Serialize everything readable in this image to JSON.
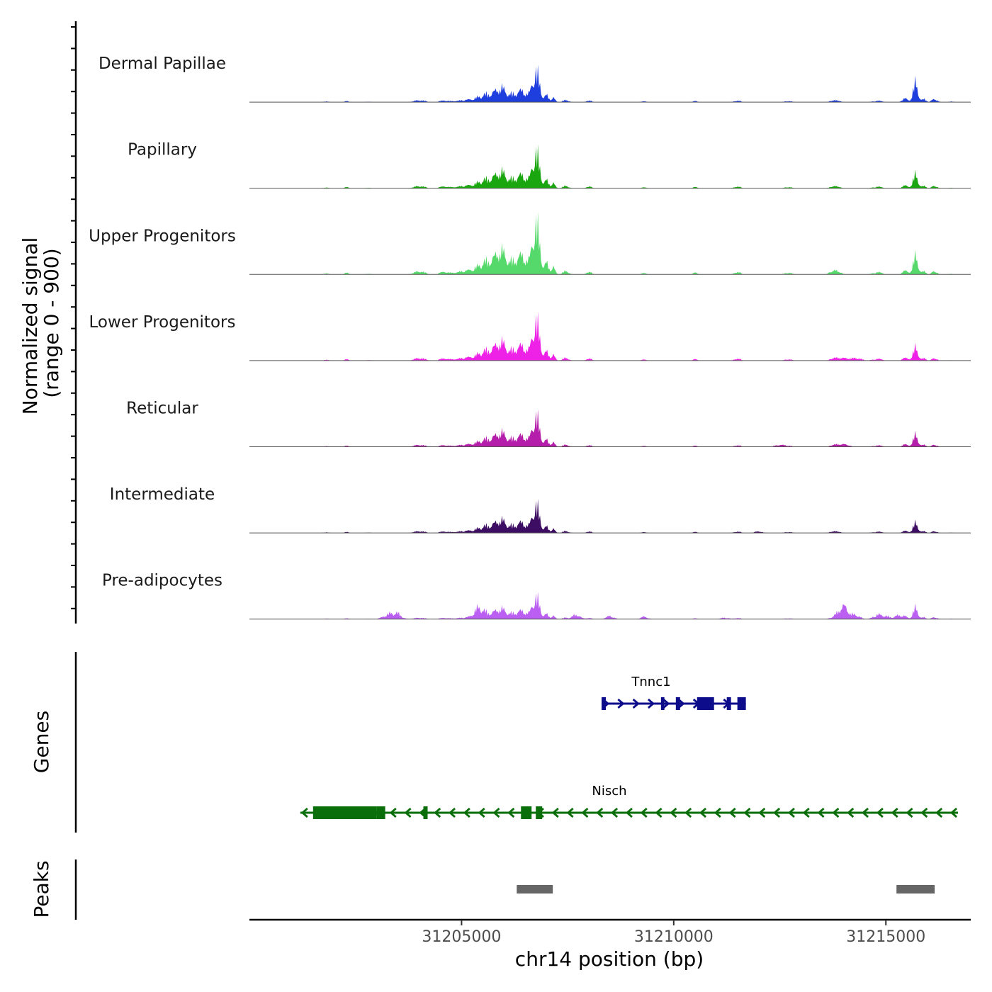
{
  "chart_data": {
    "type": "area",
    "title": "",
    "ylabel": "Normalized signal",
    "ylabel_range": "(range 0 - 900)",
    "xlabel": "chr14 position (bp)",
    "xlim": [
      31200000,
      31217000
    ],
    "ylim": [
      0,
      900
    ],
    "x_ticks": [
      31205000,
      31210000,
      31215000
    ],
    "x_tick_labels": [
      "31205000",
      "31210000",
      "31215000"
    ],
    "peak_shape": [
      {
        "center": 31201800,
        "width": 60,
        "height": 0.02
      },
      {
        "center": 31202300,
        "width": 60,
        "height": 0.02
      },
      {
        "center": 31202800,
        "width": 50,
        "height": 0.015
      },
      {
        "center": 31204000,
        "width": 120,
        "height": 0.05
      },
      {
        "center": 31204600,
        "width": 120,
        "height": 0.03
      },
      {
        "center": 31205100,
        "width": 150,
        "height": 0.06
      },
      {
        "center": 31205400,
        "width": 120,
        "height": 0.12
      },
      {
        "center": 31205600,
        "width": 110,
        "height": 0.2
      },
      {
        "center": 31205800,
        "width": 100,
        "height": 0.22
      },
      {
        "center": 31205950,
        "width": 90,
        "height": 0.38
      },
      {
        "center": 31206150,
        "width": 80,
        "height": 0.2
      },
      {
        "center": 31206350,
        "width": 90,
        "height": 0.3
      },
      {
        "center": 31206500,
        "width": 70,
        "height": 0.22
      },
      {
        "center": 31206750,
        "width": 85,
        "height": 1.0
      },
      {
        "center": 31207000,
        "width": 45,
        "height": 0.2
      },
      {
        "center": 31207150,
        "width": 45,
        "height": 0.16
      },
      {
        "center": 31207450,
        "width": 70,
        "height": 0.06
      },
      {
        "center": 31208000,
        "width": 70,
        "height": 0.03
      },
      {
        "center": 31209300,
        "width": 70,
        "height": 0.02
      },
      {
        "center": 31210500,
        "width": 70,
        "height": 0.02
      },
      {
        "center": 31211500,
        "width": 80,
        "height": 0.03
      },
      {
        "center": 31212700,
        "width": 80,
        "height": 0.03
      },
      {
        "center": 31213800,
        "width": 100,
        "height": 0.04
      },
      {
        "center": 31214800,
        "width": 100,
        "height": 0.04
      },
      {
        "center": 31215450,
        "width": 60,
        "height": 0.1
      },
      {
        "center": 31215700,
        "width": 55,
        "height": 0.62
      },
      {
        "center": 31215900,
        "width": 45,
        "height": 0.08
      },
      {
        "center": 31216150,
        "width": 60,
        "height": 0.09
      },
      {
        "center": 31216550,
        "width": 50,
        "height": 0.02
      }
    ],
    "series": [
      {
        "name": "Dermal Papillae",
        "color": "#1e3ede",
        "scale": 0.55,
        "peak_scale": 1.0,
        "extra": []
      },
      {
        "name": "Papillary",
        "color": "#19a60f",
        "scale": 0.64,
        "peak_scale": 0.6,
        "extra": []
      },
      {
        "name": "Upper Progenitors",
        "color": "#55d96a",
        "scale": 0.92,
        "peak_scale": 0.55,
        "extra": [
          {
            "center": 31213800,
            "width": 100,
            "height": 0.02
          }
        ]
      },
      {
        "name": "Lower Progenitors",
        "color": "#ee22e6",
        "scale": 0.72,
        "peak_scale": 0.5,
        "extra": [
          {
            "center": 31214300,
            "width": 120,
            "height": 0.05
          },
          {
            "center": 31214000,
            "width": 120,
            "height": 0.04
          }
        ]
      },
      {
        "name": "Reticular",
        "color": "#b41eaa",
        "scale": 0.55,
        "peak_scale": 0.6,
        "extra": [
          {
            "center": 31212500,
            "width": 100,
            "height": 0.05
          },
          {
            "center": 31214000,
            "width": 120,
            "height": 0.06
          }
        ]
      },
      {
        "name": "Intermediate",
        "color": "#3d0d63",
        "scale": 0.5,
        "peak_scale": 0.55,
        "extra": [
          {
            "center": 31212000,
            "width": 100,
            "height": 0.03
          }
        ]
      },
      {
        "name": "Pre-adipocytes",
        "color": "#bb5ef2",
        "scale": 0.4,
        "peak_scale": 0.8,
        "extra": [
          {
            "center": 31203300,
            "width": 120,
            "height": 0.22
          },
          {
            "center": 31203500,
            "width": 90,
            "height": 0.2
          },
          {
            "center": 31205400,
            "width": 100,
            "height": 0.35
          },
          {
            "center": 31207700,
            "width": 80,
            "height": 0.2
          },
          {
            "center": 31208500,
            "width": 80,
            "height": 0.12
          },
          {
            "center": 31209300,
            "width": 80,
            "height": 0.08
          },
          {
            "center": 31211200,
            "width": 80,
            "height": 0.06
          },
          {
            "center": 31214000,
            "width": 120,
            "height": 0.55
          },
          {
            "center": 31214300,
            "width": 90,
            "height": 0.15
          },
          {
            "center": 31214800,
            "width": 90,
            "height": 0.15
          },
          {
            "center": 31215000,
            "width": 90,
            "height": 0.12
          },
          {
            "center": 31215300,
            "width": 90,
            "height": 0.15
          }
        ]
      }
    ],
    "genes_track_label": "Genes",
    "peaks_track_label": "Peaks",
    "genes": [
      {
        "name": "Tnnc1",
        "strand": "+",
        "start": 31208300,
        "end": 31211700,
        "color": "#0d0d8c",
        "exons": [
          [
            31208300,
            31208400
          ],
          [
            31209700,
            31209780
          ],
          [
            31210050,
            31210150
          ],
          [
            31210550,
            31210950
          ],
          [
            31211250,
            31211350
          ],
          [
            31211500,
            31211700
          ]
        ]
      },
      {
        "name": "Nisch",
        "strand": "-",
        "start": 31201200,
        "end": 31216700,
        "color": "#0a6e0a",
        "exons": [
          [
            31201500,
            31203000
          ],
          [
            31203000,
            31203200
          ],
          [
            31204100,
            31204200
          ],
          [
            31206400,
            31206650
          ],
          [
            31206750,
            31206900
          ]
        ]
      }
    ],
    "peaks": [
      [
        31206300,
        31207150
      ],
      [
        31215250,
        31216150
      ]
    ]
  }
}
